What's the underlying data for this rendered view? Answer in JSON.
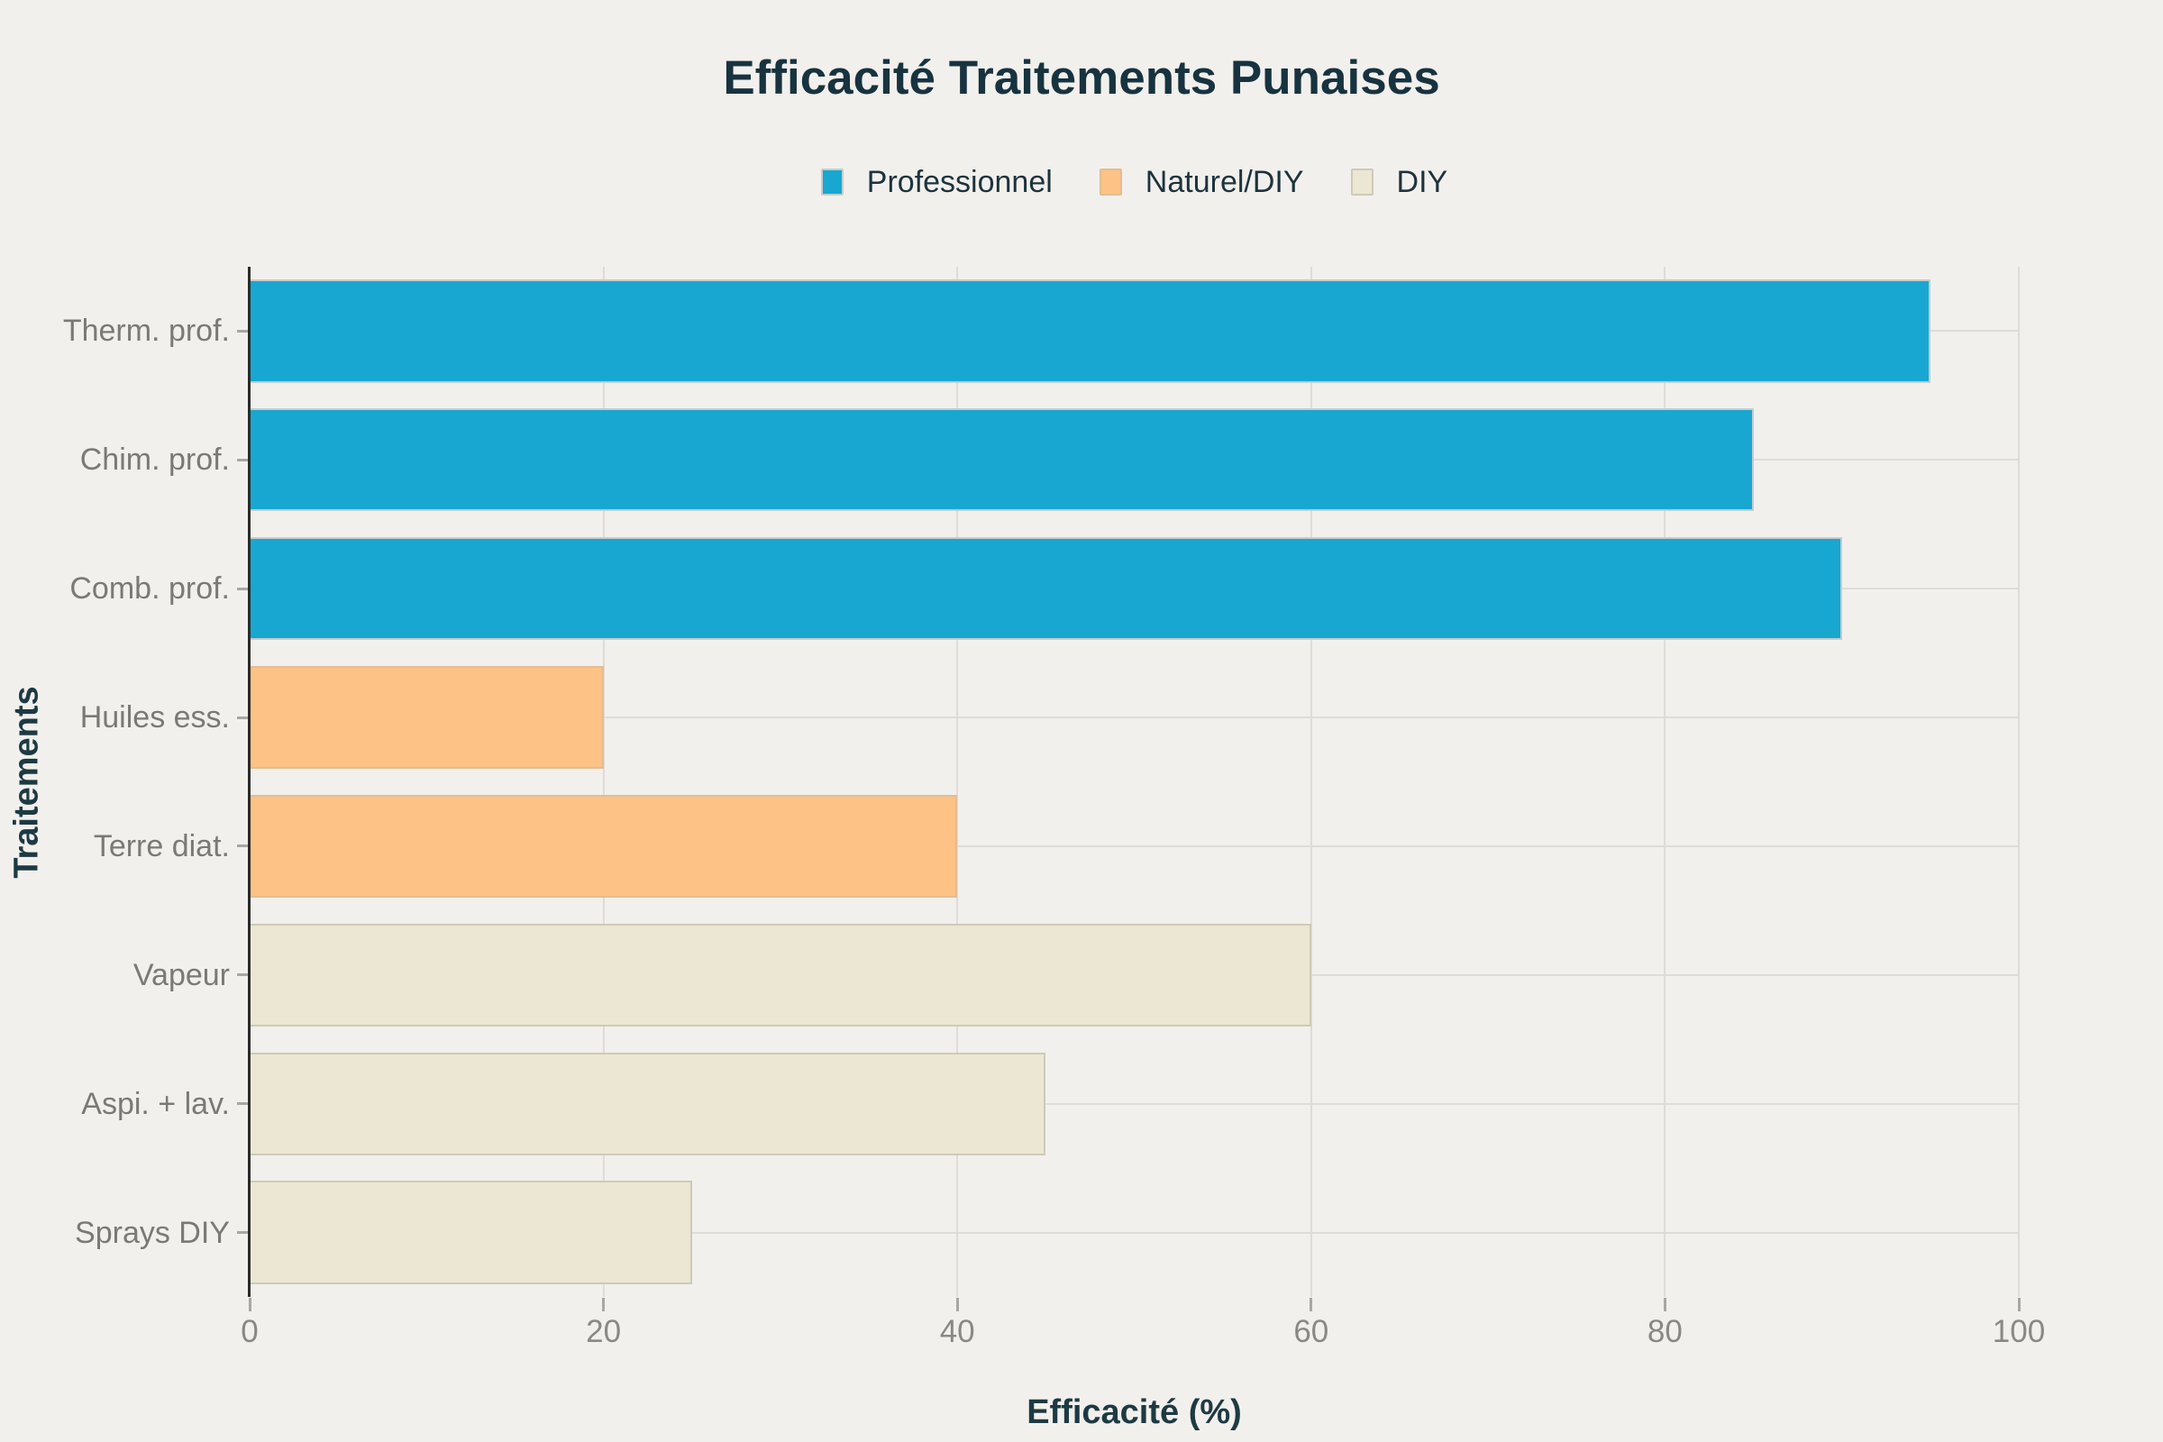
{
  "page": {
    "background": "#f2f0ed"
  },
  "chart_data": {
    "type": "bar",
    "orientation": "horizontal",
    "title": "Efficacité Traitements Punaises",
    "xlabel": "Efficacité (%)",
    "ylabel": "Traitements",
    "xlim": [
      0,
      100
    ],
    "xticks": [
      0,
      20,
      40,
      60,
      80,
      100
    ],
    "grid": true,
    "legend_position": "top",
    "legend": [
      {
        "label": "Professionnel",
        "color": "#18a7d0",
        "border": "#c6cbcd"
      },
      {
        "label": "Naturel/DIY",
        "color": "#fdc286",
        "border": "#e2bd92"
      },
      {
        "label": "DIY",
        "color": "#ebe7d3",
        "border": "#cecab7"
      }
    ],
    "categories": [
      "Therm. prof.",
      "Chim. prof.",
      "Comb. prof.",
      "Huiles ess.",
      "Terre diat.",
      "Vapeur",
      "Aspi. + lav.",
      "Sprays DIY"
    ],
    "bars": [
      {
        "category": "Therm. prof.",
        "value": 95,
        "group": "Professionnel"
      },
      {
        "category": "Chim. prof.",
        "value": 85,
        "group": "Professionnel"
      },
      {
        "category": "Comb. prof.",
        "value": 90,
        "group": "Professionnel"
      },
      {
        "category": "Huiles ess.",
        "value": 20,
        "group": "Naturel/DIY"
      },
      {
        "category": "Terre diat.",
        "value": 40,
        "group": "Naturel/DIY"
      },
      {
        "category": "Vapeur",
        "value": 60,
        "group": "DIY"
      },
      {
        "category": "Aspi. + lav.",
        "value": 45,
        "group": "DIY"
      },
      {
        "category": "Sprays DIY",
        "value": 25,
        "group": "DIY"
      }
    ]
  }
}
